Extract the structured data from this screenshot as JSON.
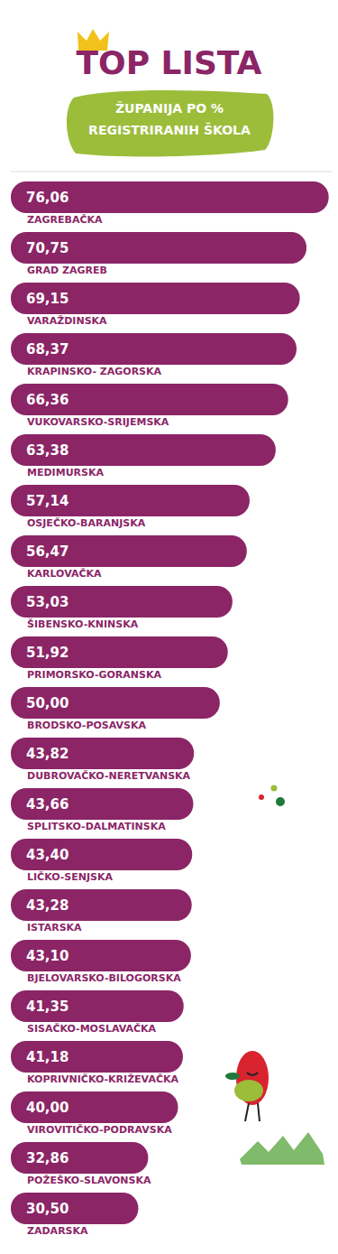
{
  "chart_data": {
    "type": "bar",
    "title": "TOP LISTA",
    "subtitle": "ŽUPANIJA PO % REGISTRIRANIH ŠKOLA",
    "orientation": "horizontal",
    "categories": [
      "ZAGREBAČKA",
      "GRAD ZAGREB",
      "VARAŽDINSKA",
      "KRAPINSKO- ZAGORSKA",
      "VUKOVARSKO-SRIJEMSKA",
      "MEDIMURSKA",
      "OSJEČKO-BARANJSKA",
      "KARLOVAČKA",
      "ŠIBENSKO-KNINSKA",
      "PRIMORSKO-GORANSKA",
      "BRODSKO-POSAVSKA",
      "DUBROVAČKO-NERETVANSKA",
      "SPLITSKO-DALMATINSKA",
      "LIČKO-SENJSKA",
      "ISTARSKA",
      "BJELOVARSKO-BILOGORSKA",
      "SISAČKO-MOSLAVAČKA",
      "KOPRIVNIČKO-KRIŽEVAČKA",
      "VIROVITIČKO-PODRAVSKA",
      "POŽEŠKO-SLAVONSKA",
      "ZADARSKA"
    ],
    "values": [
      76.06,
      70.75,
      69.15,
      68.37,
      66.36,
      63.38,
      57.14,
      56.47,
      53.03,
      51.92,
      50.0,
      43.82,
      43.66,
      43.4,
      43.28,
      43.1,
      41.35,
      41.18,
      40.0,
      32.86,
      30.5
    ],
    "value_labels": [
      "76,06",
      "70,75",
      "69,15",
      "68,37",
      "66,36",
      "63,38",
      "57,14",
      "56,47",
      "53,03",
      "51,92",
      "50,00",
      "43,82",
      "43,66",
      "43,40",
      "43,28",
      "43,10",
      "41,35",
      "41,18",
      "40,00",
      "32,86",
      "30,50"
    ],
    "color": "#8b2566",
    "xlim": [
      0,
      77
    ],
    "data_labels": true,
    "tick_labels": "y",
    "grid": false
  }
}
